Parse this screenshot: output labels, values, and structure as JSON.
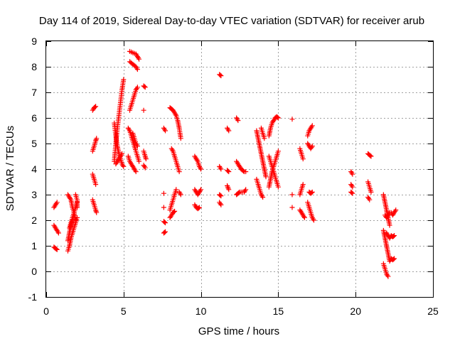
{
  "chart_data": {
    "type": "scatter",
    "title": "Day 114 of 2019, Sidereal Day-to-day VTEC variation (SDTVAR) for receiver arub",
    "xlabel": "GPS time / hours",
    "ylabel": "SDTVAR / TECUs",
    "xlim": [
      0,
      25
    ],
    "ylim": [
      -1,
      9
    ],
    "xticks": [
      0,
      5,
      10,
      15,
      20,
      25
    ],
    "yticks": [
      -1,
      0,
      1,
      2,
      3,
      4,
      5,
      6,
      7,
      8,
      9
    ],
    "grid": true,
    "marker": "+",
    "color": "#ff0000",
    "series": [
      {
        "name": "SDTVAR",
        "segments": [
          [
            0.5,
            2.5,
            0.6,
            2.6,
            0.7,
            2.7
          ],
          [
            0.5,
            1.8,
            0.6,
            1.7,
            0.7,
            1.6,
            0.8,
            1.5
          ],
          [
            0.5,
            0.95,
            0.6,
            0.9,
            0.7,
            0.85
          ],
          [
            1.4,
            3.0,
            1.5,
            2.9,
            1.6,
            2.8,
            1.7,
            2.5,
            1.8,
            2.3,
            1.9,
            2.0
          ],
          [
            1.4,
            0.8,
            1.5,
            1.0,
            1.6,
            1.3,
            1.7,
            1.5,
            1.8,
            1.7,
            1.9,
            1.9,
            2.0,
            2.1
          ],
          [
            1.5,
            1.7,
            1.6,
            1.9,
            1.7,
            2.1,
            1.8,
            2.3,
            1.9,
            2.5,
            2.0,
            2.7
          ],
          [
            1.4,
            1.2,
            1.5,
            1.5,
            1.6,
            1.8,
            1.7,
            2.0
          ],
          [
            1.9,
            3.0,
            2.0,
            2.8,
            2.0,
            2.5
          ],
          [
            3.0,
            6.3,
            3.1,
            6.4,
            3.2,
            6.45
          ],
          [
            3.0,
            4.7,
            3.1,
            4.9,
            3.2,
            5.1,
            3.25,
            5.2
          ],
          [
            3.0,
            3.8,
            3.1,
            3.6,
            3.2,
            3.4
          ],
          [
            3.0,
            2.8,
            3.1,
            2.6,
            3.2,
            2.4,
            3.25,
            2.3
          ],
          [
            4.4,
            4.3,
            4.5,
            5.0,
            4.6,
            5.6,
            4.7,
            6.1,
            4.8,
            6.6,
            4.9,
            7.1,
            5.0,
            7.5
          ],
          [
            4.4,
            5.8,
            4.5,
            5.3,
            4.6,
            4.9,
            4.7,
            4.6,
            4.8,
            4.4,
            4.9,
            4.2,
            5.0,
            4.1
          ],
          [
            4.5,
            4.2,
            4.6,
            4.3,
            4.7,
            4.4,
            4.8,
            4.5,
            4.9,
            4.6
          ],
          [
            5.3,
            5.6,
            5.4,
            5.5,
            5.5,
            5.3,
            5.6,
            5.1,
            5.7,
            4.9,
            5.8,
            4.7,
            5.9,
            4.5,
            6.0,
            4.3
          ],
          [
            5.3,
            4.5,
            5.4,
            4.3,
            5.5,
            4.2,
            5.6,
            4.1,
            5.7,
            4.0,
            5.8,
            3.9
          ],
          [
            5.4,
            6.3,
            5.5,
            6.5,
            5.6,
            6.7,
            5.7,
            6.9,
            5.8,
            7.1,
            5.9,
            7.2
          ],
          [
            5.4,
            8.6,
            5.6,
            8.55,
            5.8,
            8.5,
            5.9,
            8.4,
            6.0,
            8.3
          ],
          [
            5.4,
            8.2,
            5.6,
            8.1,
            5.8,
            8.0,
            5.9,
            7.9
          ],
          [
            5.6,
            5.4,
            5.7,
            5.2,
            5.8,
            5.0,
            5.9,
            4.9
          ],
          [
            6.3,
            7.25,
            6.4,
            7.2
          ],
          [
            6.3,
            6.3
          ],
          [
            6.3,
            4.7,
            6.4,
            4.5,
            6.45,
            4.4
          ],
          [
            6.3,
            4.15,
            6.4,
            4.05
          ],
          [
            7.6,
            5.6,
            7.7,
            5.5
          ],
          [
            7.6,
            3.05
          ],
          [
            7.6,
            2.5
          ],
          [
            7.6,
            1.95,
            7.7,
            1.9
          ],
          [
            7.6,
            1.5,
            7.7,
            1.55
          ],
          [
            8.0,
            6.4,
            8.1,
            6.35,
            8.2,
            6.3,
            8.3,
            6.2,
            8.4,
            6.1,
            8.5,
            5.9,
            8.6,
            5.6,
            8.7,
            5.2
          ],
          [
            8.1,
            4.8,
            8.2,
            4.7,
            8.3,
            4.5,
            8.4,
            4.3,
            8.5,
            4.1,
            8.6,
            3.9
          ],
          [
            8.0,
            2.4,
            8.1,
            2.6,
            8.2,
            2.8,
            8.3,
            3.0,
            8.4,
            3.2
          ],
          [
            8.0,
            2.1,
            8.1,
            2.2,
            8.2,
            2.3,
            8.3,
            2.35
          ],
          [
            8.6,
            3.1,
            8.7,
            3.0
          ],
          [
            9.6,
            4.5,
            9.7,
            4.4,
            9.8,
            4.3,
            9.9,
            4.1,
            10.0,
            4.0
          ],
          [
            9.6,
            3.2,
            9.7,
            3.1,
            9.8,
            3.0,
            9.9,
            3.1,
            10.0,
            3.2
          ],
          [
            9.6,
            2.6,
            9.7,
            2.5,
            9.8,
            2.45,
            9.9,
            2.5
          ],
          [
            11.2,
            7.7,
            11.3,
            7.65
          ],
          [
            11.2,
            4.1,
            11.3,
            4.0
          ],
          [
            11.2,
            3.0,
            11.3,
            2.95
          ],
          [
            11.2,
            2.7,
            11.3,
            2.6
          ],
          [
            11.7,
            5.6,
            11.8,
            5.5
          ],
          [
            11.7,
            3.95,
            11.8,
            3.9
          ],
          [
            11.7,
            3.35,
            11.8,
            3.2
          ],
          [
            12.3,
            6.0,
            12.4,
            5.9
          ],
          [
            12.3,
            3.0,
            12.4,
            3.05,
            12.5,
            3.1,
            12.6,
            3.1,
            12.7,
            3.1,
            12.8,
            3.1,
            12.9,
            3.2
          ],
          [
            12.3,
            4.3,
            12.4,
            4.2,
            12.5,
            4.1,
            12.6,
            4.0,
            12.7,
            3.95,
            12.8,
            3.9,
            12.9,
            3.9
          ],
          [
            13.6,
            5.5,
            13.7,
            5.2,
            13.8,
            4.9,
            13.9,
            4.6,
            14.0,
            4.3,
            14.1,
            4.0,
            14.2,
            3.7
          ],
          [
            13.6,
            3.6,
            13.7,
            3.4,
            13.8,
            3.2,
            13.9,
            3.0,
            14.0,
            2.9
          ],
          [
            13.9,
            5.6,
            14.0,
            5.4,
            14.1,
            5.2
          ],
          [
            14.4,
            3.3,
            14.5,
            3.6,
            14.6,
            3.9,
            14.7,
            4.1,
            14.8,
            4.3,
            14.9,
            4.5,
            15.0,
            4.7
          ],
          [
            14.4,
            5.3,
            14.5,
            5.6,
            14.6,
            5.8,
            14.7,
            5.9,
            14.8,
            6.0,
            14.9,
            6.05,
            15.0,
            6.0
          ],
          [
            14.4,
            4.5,
            14.5,
            4.3,
            14.6,
            4.1,
            14.7,
            3.9,
            14.8,
            3.7,
            14.9,
            3.5,
            15.0,
            3.3
          ],
          [
            15.9,
            5.95
          ],
          [
            15.9,
            3.0
          ],
          [
            15.9,
            2.5
          ],
          [
            16.4,
            4.8,
            16.5,
            4.6,
            16.6,
            4.4
          ],
          [
            16.4,
            3.0,
            16.5,
            3.2,
            16.6,
            3.4
          ],
          [
            16.4,
            2.4,
            16.5,
            2.3,
            16.6,
            2.2,
            16.7,
            2.1
          ],
          [
            16.9,
            5.3,
            17.0,
            5.5,
            17.1,
            5.6,
            17.2,
            5.7
          ],
          [
            16.9,
            5.0,
            17.0,
            4.9,
            17.1,
            4.8,
            17.2,
            4.9
          ],
          [
            17.0,
            3.1,
            17.1,
            3.05,
            17.2,
            3.1
          ],
          [
            16.9,
            2.7,
            17.0,
            2.5,
            17.1,
            2.3,
            17.2,
            2.1,
            17.3,
            2.0
          ],
          [
            19.7,
            3.9,
            19.8,
            3.8
          ],
          [
            19.7,
            3.4,
            19.8,
            3.3
          ],
          [
            19.7,
            3.1,
            19.8,
            3.05
          ],
          [
            20.8,
            4.6,
            20.9,
            4.55,
            21.0,
            4.5
          ],
          [
            20.8,
            3.5,
            20.9,
            3.3,
            21.0,
            3.1
          ],
          [
            20.8,
            2.9,
            20.9,
            2.8
          ],
          [
            21.8,
            3.0,
            21.9,
            2.7,
            22.0,
            2.4,
            22.1,
            2.1,
            22.2,
            1.8
          ],
          [
            21.8,
            1.6,
            21.9,
            1.3,
            22.0,
            1.0,
            22.1,
            0.7,
            22.2,
            0.4,
            22.3,
            0.5,
            22.4,
            0.45,
            22.5,
            0.5
          ],
          [
            21.8,
            0.3,
            21.9,
            0.1,
            22.0,
            -0.1,
            22.1,
            -0.2
          ],
          [
            21.9,
            2.2,
            22.0,
            2.1,
            22.1,
            2.2,
            22.2,
            2.3,
            22.3,
            2.3,
            22.4,
            2.2,
            22.5,
            2.3,
            22.6,
            2.4
          ],
          [
            22.0,
            1.5,
            22.1,
            1.4,
            22.2,
            1.3,
            22.3,
            1.4,
            22.4,
            1.35,
            22.5,
            1.4
          ]
        ]
      }
    ]
  }
}
